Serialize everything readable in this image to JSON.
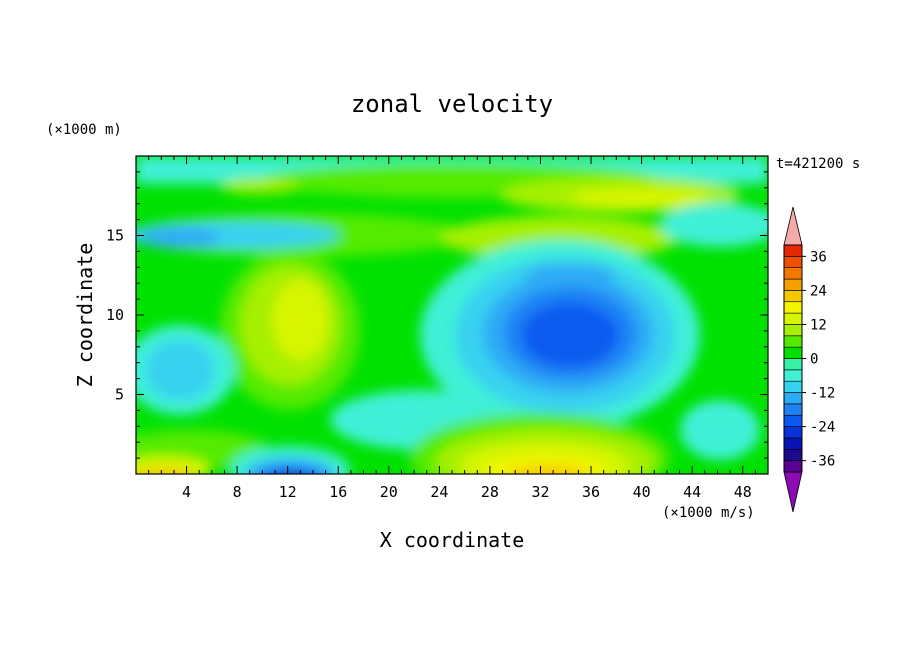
{
  "chart_data": {
    "type": "heatmap",
    "title": "zonal velocity",
    "xlabel": "X coordinate",
    "ylabel": "Z coordinate",
    "x_unit": "(×1000 m/s)",
    "y_unit": "(×1000 m)",
    "time_label": "t=421200 s",
    "xlim": [
      0,
      50
    ],
    "ylim": [
      0,
      20
    ],
    "x_ticks": [
      4,
      8,
      12,
      16,
      20,
      24,
      28,
      32,
      36,
      40,
      44,
      48
    ],
    "y_ticks": [
      5,
      10,
      15
    ],
    "colorbar": {
      "levels": [
        -40,
        -36,
        -32,
        -28,
        -24,
        -20,
        -16,
        -12,
        -8,
        -4,
        0,
        4,
        8,
        12,
        16,
        20,
        24,
        28,
        32,
        36,
        40
      ],
      "tick_labels": [
        36,
        24,
        12,
        0,
        -12,
        -24,
        -36
      ],
      "colors": [
        "#5a0096",
        "#1e0a8c",
        "#0a14b4",
        "#0a32dc",
        "#0a5af0",
        "#1e82f5",
        "#2daaf5",
        "#37d2f0",
        "#41f0d7",
        "#37f0a5",
        "#00e100",
        "#55eb00",
        "#a5f000",
        "#d7f500",
        "#f5f500",
        "#f5c800",
        "#f5a000",
        "#f57800",
        "#f05000",
        "#e62800",
        "#f5aaaa"
      ],
      "extend_colors": {
        "low": "#8c0ab4",
        "high": "#f5aaaa"
      }
    },
    "features": [
      {
        "name": "jet-core-negative",
        "x": 33,
        "z": 8.5,
        "value": -26
      },
      {
        "name": "surface-negative",
        "x": 12,
        "z": 0.4,
        "value": -26
      },
      {
        "name": "surface-positive",
        "x": 33,
        "z": 0.6,
        "value": 20
      },
      {
        "name": "surface-positive-left",
        "x": 2,
        "z": 0.4,
        "value": 14
      },
      {
        "name": "midlevel-positive",
        "x": 12,
        "z": 10,
        "value": 10
      }
    ]
  }
}
